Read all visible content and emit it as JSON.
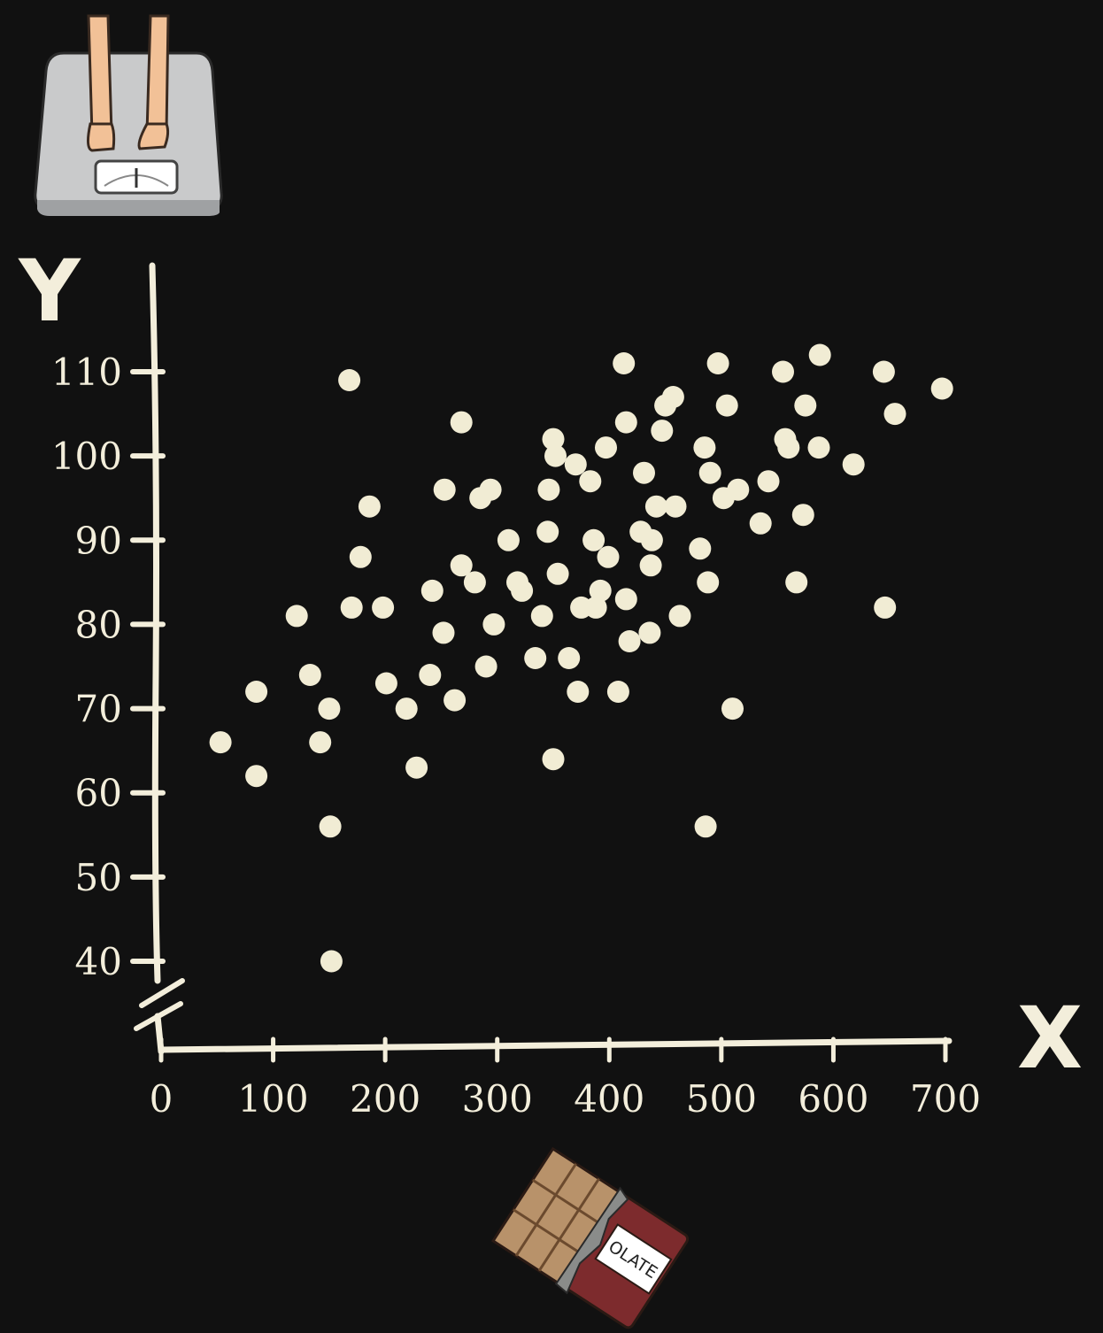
{
  "colors": {
    "background": "#111111",
    "chalk": "#f3eedb",
    "dot": "#f1ecd4",
    "scale_platform": "#c9cacb",
    "skin": "#f2c197",
    "chocolate": "#b8926a",
    "wrapper": "#7d2b2d"
  },
  "icons": {
    "y_axis_icon": "bathroom-scale-icon",
    "x_axis_icon": "chocolate-bar-icon"
  },
  "chocolate_label": "OLATE",
  "chart_data": {
    "type": "scatter",
    "title": "",
    "xlabel": "X",
    "ylabel": "Y",
    "xlim": [
      0,
      700
    ],
    "ylim": [
      34,
      112
    ],
    "x_ticks": [
      0,
      100,
      200,
      300,
      400,
      500,
      600,
      700
    ],
    "y_ticks": [
      40,
      50,
      60,
      70,
      80,
      90,
      100,
      110
    ],
    "y_axis_break": true,
    "grid": false,
    "legend": "none",
    "points": [
      [
        53,
        66
      ],
      [
        85,
        72
      ],
      [
        85,
        62
      ],
      [
        121,
        81
      ],
      [
        133,
        74
      ],
      [
        142,
        66
      ],
      [
        150,
        70
      ],
      [
        151,
        56
      ],
      [
        152,
        40
      ],
      [
        168,
        109
      ],
      [
        170,
        82
      ],
      [
        178,
        88
      ],
      [
        186,
        94
      ],
      [
        198,
        82
      ],
      [
        201,
        73
      ],
      [
        219,
        70
      ],
      [
        228,
        63
      ],
      [
        240,
        74
      ],
      [
        242,
        84
      ],
      [
        252,
        79
      ],
      [
        253,
        96
      ],
      [
        262,
        71
      ],
      [
        268,
        104
      ],
      [
        268,
        87
      ],
      [
        280,
        85
      ],
      [
        285,
        95
      ],
      [
        290,
        75
      ],
      [
        294,
        96
      ],
      [
        297,
        80
      ],
      [
        310,
        90
      ],
      [
        318,
        85
      ],
      [
        322,
        84
      ],
      [
        334,
        76
      ],
      [
        340,
        81
      ],
      [
        345,
        91
      ],
      [
        346,
        96
      ],
      [
        350,
        102
      ],
      [
        350,
        64
      ],
      [
        352,
        100
      ],
      [
        354,
        86
      ],
      [
        364,
        76
      ],
      [
        370,
        99
      ],
      [
        372,
        72
      ],
      [
        375,
        82
      ],
      [
        383,
        97
      ],
      [
        386,
        90
      ],
      [
        388,
        82
      ],
      [
        392,
        84
      ],
      [
        397,
        101
      ],
      [
        399,
        88
      ],
      [
        408,
        72
      ],
      [
        413,
        111
      ],
      [
        415,
        104
      ],
      [
        415,
        83
      ],
      [
        418,
        78
      ],
      [
        428,
        91
      ],
      [
        431,
        98
      ],
      [
        436,
        79
      ],
      [
        437,
        87
      ],
      [
        438,
        90
      ],
      [
        442,
        94
      ],
      [
        447,
        103
      ],
      [
        450,
        106
      ],
      [
        457,
        107
      ],
      [
        459,
        94
      ],
      [
        463,
        81
      ],
      [
        481,
        89
      ],
      [
        485,
        101
      ],
      [
        486,
        56
      ],
      [
        488,
        85
      ],
      [
        490,
        98
      ],
      [
        497,
        111
      ],
      [
        502,
        95
      ],
      [
        505,
        106
      ],
      [
        510,
        70
      ],
      [
        515,
        96
      ],
      [
        535,
        92
      ],
      [
        542,
        97
      ],
      [
        555,
        110
      ],
      [
        557,
        102
      ],
      [
        560,
        101
      ],
      [
        567,
        85
      ],
      [
        573,
        93
      ],
      [
        575,
        106
      ],
      [
        587,
        101
      ],
      [
        588,
        112
      ],
      [
        618,
        99
      ],
      [
        645,
        110
      ],
      [
        646,
        82
      ],
      [
        655,
        105
      ],
      [
        697,
        108
      ]
    ]
  }
}
